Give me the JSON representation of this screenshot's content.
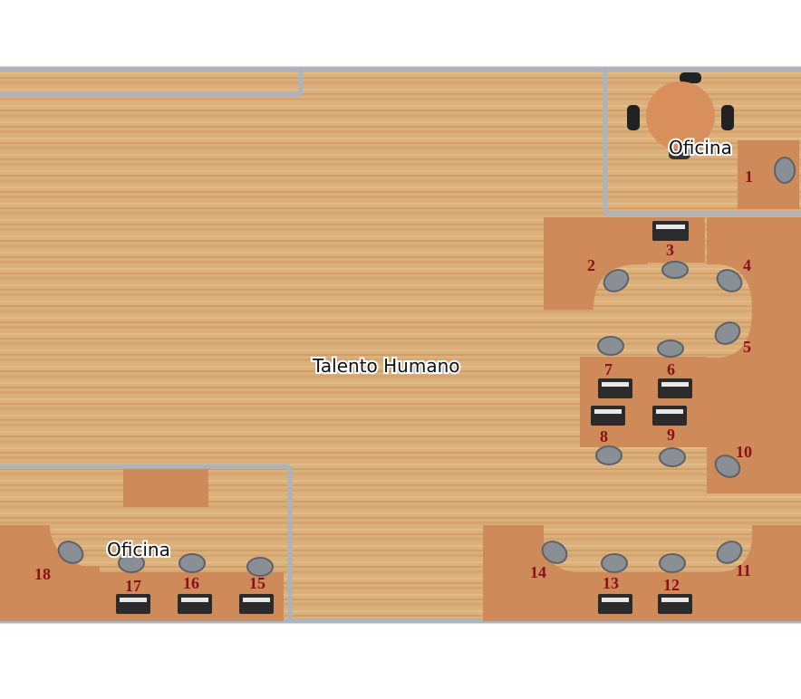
{
  "rooms": {
    "main": "Talento Humano",
    "office_top": "Oficina",
    "office_bottom": "Oficina"
  },
  "seats": [
    "1",
    "2",
    "3",
    "4",
    "5",
    "6",
    "7",
    "8",
    "9",
    "10",
    "11",
    "12",
    "13",
    "14",
    "15",
    "16",
    "17",
    "18"
  ],
  "colors": {
    "floor": "#dcb07a",
    "wall": "#a9b4c0",
    "desk": "#cf8a5a",
    "chair": "#8a8f96",
    "seat_number": "#8b0f1a"
  }
}
